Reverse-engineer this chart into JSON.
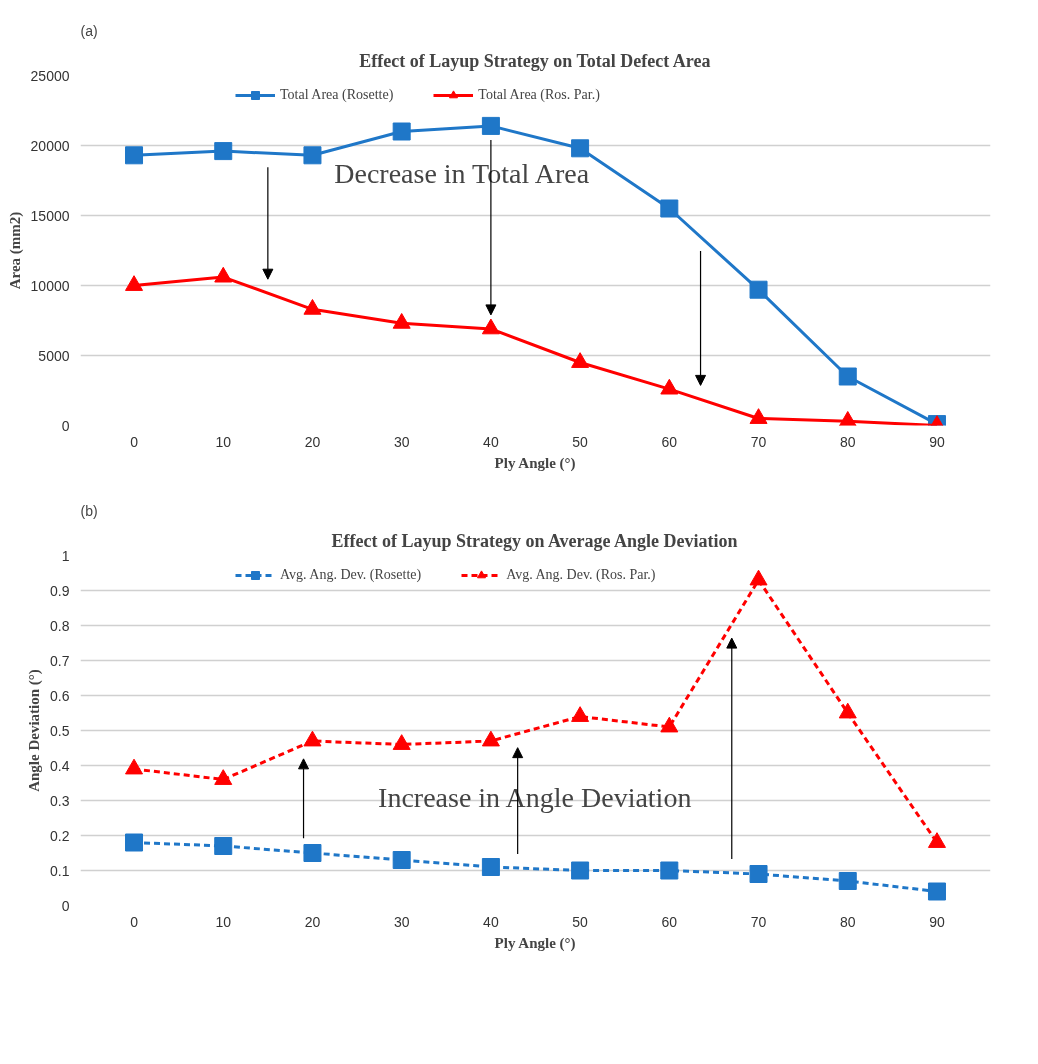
{
  "chart_data": [
    {
      "type": "line",
      "title": "Effect of Layup Strategy on Total Defect Area",
      "xlabel": "Ply Angle (°)",
      "ylabel": "Area (mm2)",
      "x": [
        0,
        10,
        20,
        30,
        40,
        50,
        60,
        70,
        80,
        90
      ],
      "series": [
        {
          "name": "Total Area (Rosette)",
          "color": "#1f77c8",
          "marker": "square",
          "values": [
            19300,
            19600,
            19300,
            21000,
            21400,
            19800,
            15500,
            9700,
            3500,
            100
          ]
        },
        {
          "name": "Total Area (Ros. Par.)",
          "color": "#ff0000",
          "marker": "triangle",
          "values": [
            10000,
            10600,
            8300,
            7300,
            6900,
            4500,
            2600,
            500,
            300,
            0
          ]
        }
      ],
      "xlim": [
        -6,
        96
      ],
      "xticks": [
        0,
        10,
        20,
        30,
        40,
        50,
        60,
        70,
        80,
        90
      ],
      "ylim": [
        0,
        25000
      ],
      "yticks": [
        0,
        5000,
        10000,
        15000,
        20000,
        25000
      ],
      "grid": "y",
      "legend": "top",
      "line_style": "solid",
      "annotations": [
        "(a)",
        "Decrease in Total Area"
      ]
    },
    {
      "type": "line",
      "title": "Effect of Layup Strategy on Average Angle Deviation",
      "xlabel": "Ply Angle (°)",
      "ylabel": "Angle Deviation (°)",
      "x": [
        0,
        10,
        20,
        30,
        40,
        50,
        60,
        70,
        80,
        90
      ],
      "series": [
        {
          "name": "Avg. Ang. Dev. (Rosette)",
          "color": "#1f77c8",
          "marker": "square",
          "values": [
            0.18,
            0.17,
            0.15,
            0.13,
            0.11,
            0.1,
            0.1,
            0.09,
            0.07,
            0.04
          ]
        },
        {
          "name": "Avg. Ang. Dev. (Ros. Par.)",
          "color": "#ff0000",
          "marker": "triangle",
          "values": [
            0.39,
            0.36,
            0.47,
            0.46,
            0.47,
            0.54,
            0.51,
            0.93,
            0.55,
            0.18
          ]
        }
      ],
      "xlim": [
        -6,
        96
      ],
      "xticks": [
        0,
        10,
        20,
        30,
        40,
        50,
        60,
        70,
        80,
        90
      ],
      "ylim": [
        0,
        1
      ],
      "yticks": [
        0,
        0.1,
        0.2,
        0.3,
        0.4,
        0.5,
        0.6,
        0.7,
        0.8,
        0.9,
        1
      ],
      "grid": "y",
      "legend": "top",
      "line_style": "dashed",
      "annotations": [
        "(b)",
        "Increase in Angle Deviation"
      ]
    }
  ]
}
